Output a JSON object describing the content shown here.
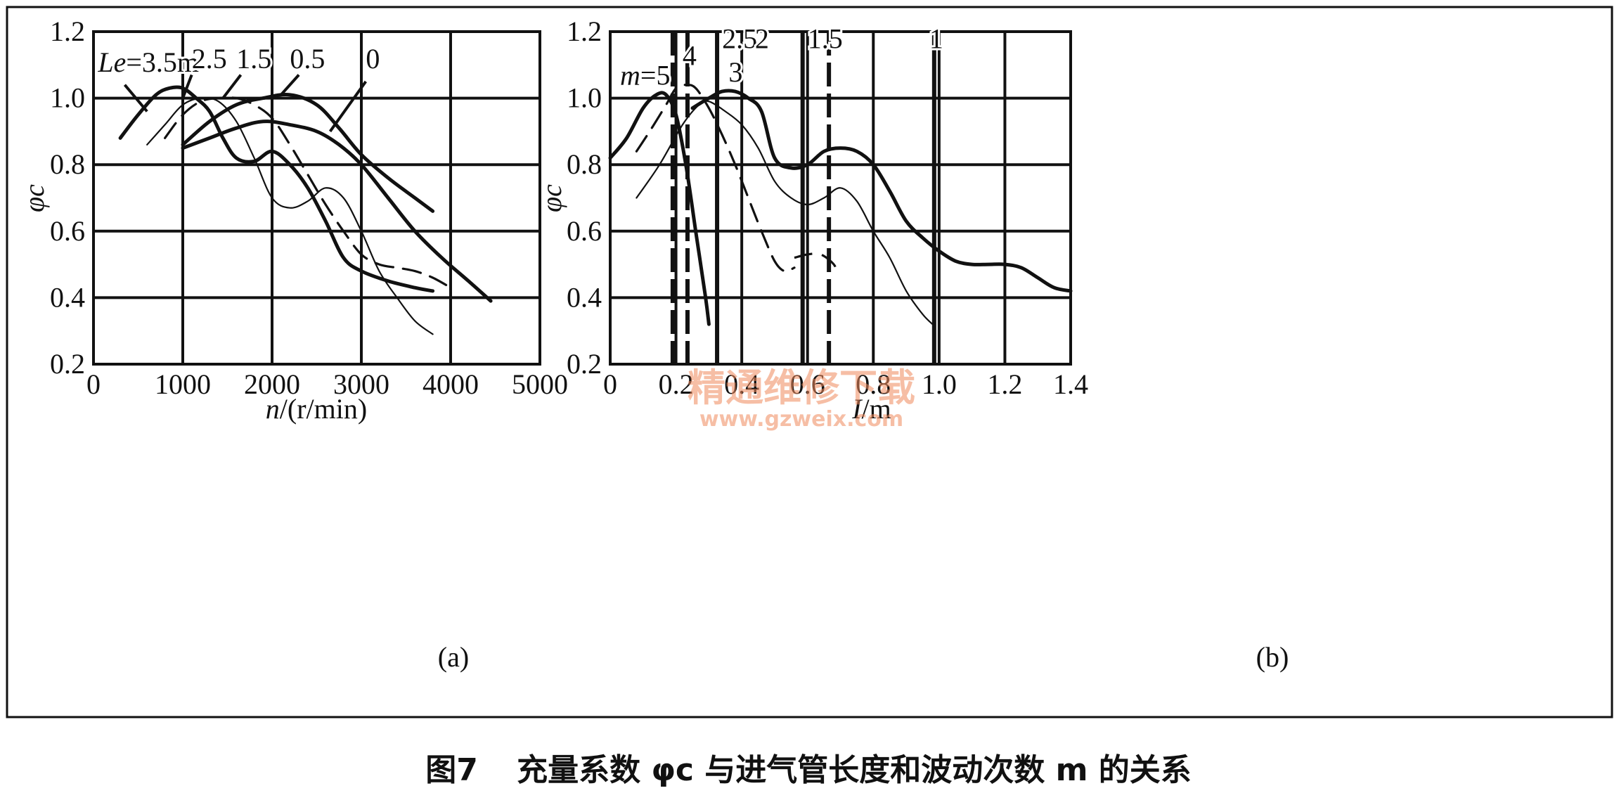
{
  "caption": {
    "figure_number": "图7",
    "text": "充量系数 φc 与进气管长度和波动次数 m 的关系"
  },
  "watermark": {
    "line1": "精通维修下载",
    "line2": "www.gzweix.com"
  },
  "chart_data": [
    {
      "type": "line",
      "panel_label": "(a)",
      "xlabel": "n/(r/min)",
      "xlabel_var": "n",
      "xlabel_unit": "/(r/min)",
      "ylabel": "φc",
      "xlim": [
        0,
        5000
      ],
      "ylim": [
        0.2,
        1.2
      ],
      "xticks": [
        0,
        1000,
        2000,
        3000,
        4000,
        5000
      ],
      "yticks": [
        0.2,
        0.4,
        0.6,
        0.8,
        1.0,
        1.2
      ],
      "xtick_labels": [
        "0",
        "1000",
        "2000",
        "3000",
        "4000",
        "5000"
      ],
      "ytick_labels": [
        "0.2",
        "0.4",
        "0.6",
        "0.8",
        "1.0",
        "1.2"
      ],
      "grid": true,
      "series": [
        {
          "name": "Le=3.5m",
          "style": "thick",
          "x": [
            300,
            500,
            700,
            850,
            1000,
            1150,
            1300,
            1450,
            1600,
            1800,
            2000,
            2200,
            2400,
            2600,
            2800,
            3000,
            3300,
            3600,
            3800
          ],
          "y": [
            0.88,
            0.95,
            1.01,
            1.03,
            1.03,
            1.0,
            0.96,
            0.88,
            0.82,
            0.81,
            0.84,
            0.8,
            0.73,
            0.63,
            0.52,
            0.48,
            0.45,
            0.43,
            0.42
          ]
        },
        {
          "name": "2.5",
          "style": "thin",
          "x": [
            600,
            800,
            1000,
            1200,
            1400,
            1600,
            1800,
            2000,
            2200,
            2400,
            2600,
            2800,
            3000,
            3200,
            3400,
            3600,
            3800
          ],
          "y": [
            0.86,
            0.92,
            0.98,
            1.0,
            0.99,
            0.93,
            0.82,
            0.7,
            0.67,
            0.69,
            0.73,
            0.7,
            0.6,
            0.48,
            0.4,
            0.33,
            0.29
          ]
        },
        {
          "name": "1.5",
          "style": "dashed",
          "x": [
            800,
            1000,
            1200,
            1400,
            1600,
            1800,
            2000,
            2200,
            2400,
            2600,
            2800,
            3000,
            3200,
            3400,
            3600,
            3800,
            4000
          ],
          "y": [
            0.88,
            0.95,
            0.99,
            1.0,
            1.0,
            0.98,
            0.94,
            0.86,
            0.77,
            0.68,
            0.6,
            0.53,
            0.5,
            0.49,
            0.48,
            0.46,
            0.43
          ]
        },
        {
          "name": "0.5",
          "style": "thick",
          "x": [
            1000,
            1300,
            1600,
            1900,
            2200,
            2500,
            2750,
            3000,
            3300,
            3600,
            3800
          ],
          "y": [
            0.86,
            0.93,
            0.98,
            1.0,
            1.01,
            0.98,
            0.91,
            0.83,
            0.76,
            0.7,
            0.66
          ]
        },
        {
          "name": "0",
          "style": "thick",
          "x": [
            1000,
            1300,
            1600,
            1900,
            2200,
            2500,
            2750,
            3000,
            3300,
            3600,
            3900,
            4200,
            4450
          ],
          "y": [
            0.85,
            0.88,
            0.91,
            0.93,
            0.92,
            0.9,
            0.86,
            0.8,
            0.7,
            0.6,
            0.52,
            0.45,
            0.39
          ]
        }
      ],
      "labels": [
        {
          "text": "Le=3.5m",
          "italic_prefix": "Le",
          "rest": "=3.5m",
          "x": 50,
          "y": 1.08
        },
        {
          "text": "2.5",
          "x": 1100,
          "y": 1.09
        },
        {
          "text": "1.5",
          "x": 1600,
          "y": 1.09
        },
        {
          "text": "0.5",
          "x": 2200,
          "y": 1.09
        },
        {
          "text": "0",
          "x": 3050,
          "y": 1.09
        }
      ],
      "leader_lines": [
        {
          "from": [
            350,
            1.04
          ],
          "to": [
            600,
            0.96
          ]
        },
        {
          "from": [
            1100,
            1.07
          ],
          "to": [
            1000,
            1.0
          ]
        },
        {
          "from": [
            1650,
            1.07
          ],
          "to": [
            1450,
            1.0
          ]
        },
        {
          "from": [
            2300,
            1.07
          ],
          "to": [
            2100,
            1.01
          ]
        },
        {
          "from": [
            3050,
            1.05
          ],
          "to": [
            2650,
            0.9
          ]
        }
      ]
    },
    {
      "type": "line",
      "panel_label": "(b)",
      "xlabel": "I/m",
      "xlabel_var": "I",
      "xlabel_unit": "/m",
      "ylabel": "φc",
      "xlim": [
        0,
        1.4
      ],
      "ylim": [
        0.2,
        1.2
      ],
      "xticks": [
        0,
        0.2,
        0.4,
        0.6,
        0.8,
        1.0,
        1.2,
        1.4
      ],
      "yticks": [
        0.2,
        0.4,
        0.6,
        0.8,
        1.0,
        1.2
      ],
      "xtick_labels": [
        "0",
        "0.2",
        "0.4",
        "0.6",
        "0.8",
        "1.0",
        "1.2",
        "1.4"
      ],
      "ytick_labels": [
        "0.2",
        "0.4",
        "0.6",
        "0.8",
        "1.0",
        "1.2"
      ],
      "grid": true,
      "vertical_markers": [
        {
          "x": 0.19,
          "style": "dashed"
        },
        {
          "x": 0.235,
          "style": "dashed"
        },
        {
          "x": 0.325,
          "style": "solid"
        },
        {
          "x": 0.585,
          "style": "solid"
        },
        {
          "x": 0.665,
          "style": "dashed"
        },
        {
          "x": 0.985,
          "style": "solid"
        }
      ],
      "series": [
        {
          "name": "m=5",
          "style": "thick",
          "x": [
            0.0,
            0.05,
            0.1,
            0.14,
            0.17,
            0.2,
            0.23,
            0.26,
            0.29,
            0.3
          ],
          "y": [
            0.82,
            0.88,
            0.97,
            1.01,
            1.01,
            0.95,
            0.8,
            0.6,
            0.4,
            0.32
          ]
        },
        {
          "name": "4",
          "style": "dashed",
          "x": [
            0.08,
            0.12,
            0.17,
            0.2,
            0.23,
            0.26,
            0.3,
            0.34,
            0.38,
            0.42,
            0.46,
            0.5,
            0.53,
            0.56
          ],
          "y": [
            0.84,
            0.9,
            0.98,
            1.03,
            1.04,
            1.03,
            0.97,
            0.89,
            0.8,
            0.7,
            0.6,
            0.51,
            0.48,
            0.49
          ]
        },
        {
          "name": "3",
          "style": "thin",
          "x": [
            0.08,
            0.15,
            0.22,
            0.27,
            0.3,
            0.35,
            0.4,
            0.45,
            0.5,
            0.55,
            0.6,
            0.65,
            0.7,
            0.75,
            0.8,
            0.85,
            0.9,
            0.95,
            0.98
          ],
          "y": [
            0.7,
            0.8,
            0.92,
            0.98,
            0.99,
            0.96,
            0.92,
            0.85,
            0.75,
            0.7,
            0.68,
            0.7,
            0.73,
            0.69,
            0.6,
            0.52,
            0.42,
            0.35,
            0.32
          ]
        },
        {
          "name": "2.5",
          "style": "thick",
          "x": [
            0.25,
            0.3,
            0.34,
            0.38,
            0.42,
            0.46,
            0.5,
            0.55,
            0.6,
            0.65,
            0.7,
            0.75,
            0.8,
            0.85,
            0.9,
            0.95,
            1.0,
            1.05,
            1.1,
            1.15,
            1.2,
            1.25,
            1.3,
            1.35,
            1.4
          ],
          "y": [
            0.97,
            1.0,
            1.02,
            1.02,
            1.0,
            0.96,
            0.82,
            0.79,
            0.8,
            0.84,
            0.85,
            0.84,
            0.8,
            0.72,
            0.63,
            0.58,
            0.54,
            0.51,
            0.5,
            0.5,
            0.5,
            0.49,
            0.46,
            0.43,
            0.42
          ]
        }
      ],
      "fragments": [
        {
          "style": "dashed",
          "x": [
            0.56,
            0.6,
            0.64,
            0.68,
            0.69
          ],
          "y": [
            0.52,
            0.53,
            0.53,
            0.5,
            0.47
          ]
        }
      ],
      "labels": [
        {
          "text": "m=5",
          "italic_prefix": "m",
          "rest": "=5",
          "x": 0.03,
          "y": 1.04
        },
        {
          "text": "4",
          "x": 0.22,
          "y": 1.1
        },
        {
          "text": "2.5",
          "x": 0.34,
          "y": 1.15
        },
        {
          "text": "3",
          "x": 0.36,
          "y": 1.05
        },
        {
          "text": "2",
          "x": 0.44,
          "y": 1.15
        },
        {
          "text": "1.5",
          "x": 0.6,
          "y": 1.15
        },
        {
          "text": "1",
          "x": 0.97,
          "y": 1.15
        }
      ]
    }
  ]
}
